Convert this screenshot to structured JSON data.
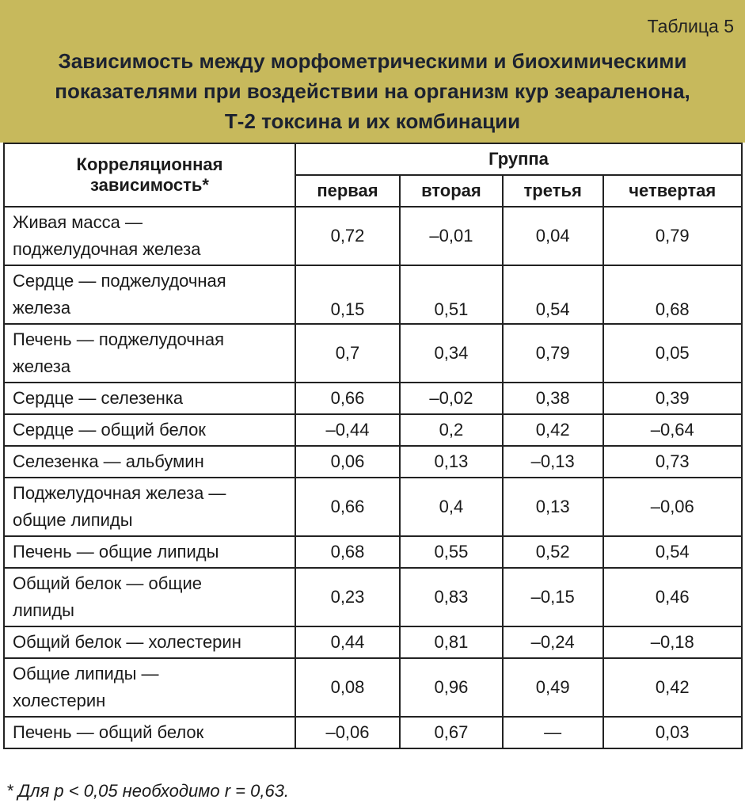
{
  "header": {
    "table_number": "Таблица 5",
    "title_lines": [
      "Зависимость между морфометрическими и биохимическими",
      "показателями при воздействии на организм кур зеараленона,",
      "Т-2 токсина и их комбинации"
    ]
  },
  "table": {
    "first_header_lines": [
      "Корреляционная",
      "зависимость*"
    ],
    "group_header": "Группа",
    "columns": [
      "первая",
      "вторая",
      "третья",
      "четвертая"
    ],
    "rows": [
      {
        "label_lines": [
          "Живая масса —",
          "поджелудочная железа"
        ],
        "cells": [
          "0,72",
          "–0,01",
          "0,04",
          "0,79"
        ]
      },
      {
        "label_lines": [
          "Сердце — поджелудочная",
          "железа"
        ],
        "cells": [
          "0,15",
          "0,51",
          "0,54",
          "0,68"
        ]
      },
      {
        "label_lines": [
          "Печень — поджелудочная",
          "железа"
        ],
        "cells": [
          "0,7",
          "0,34",
          "0,79",
          "0,05"
        ]
      },
      {
        "label_lines": [
          "Сердце — селезенка"
        ],
        "cells": [
          "0,66",
          "–0,02",
          "0,38",
          "0,39"
        ]
      },
      {
        "label_lines": [
          "Сердце — общий белок"
        ],
        "cells": [
          "–0,44",
          "0,2",
          "0,42",
          "–0,64"
        ]
      },
      {
        "label_lines": [
          "Селезенка — альбумин"
        ],
        "cells": [
          "0,06",
          "0,13",
          "–0,13",
          "0,73"
        ]
      },
      {
        "label_lines": [
          "Поджелудочная  железа —",
          "общие липиды"
        ],
        "cells": [
          "0,66",
          "0,4",
          "0,13",
          "–0,06"
        ]
      },
      {
        "label_lines": [
          "Печень — общие липиды"
        ],
        "cells": [
          "0,68",
          "0,55",
          "0,52",
          "0,54"
        ]
      },
      {
        "label_lines": [
          "Общий белок — общие",
          "липиды"
        ],
        "cells": [
          "0,23",
          "0,83",
          "–0,15",
          "0,46"
        ]
      },
      {
        "label_lines": [
          "Общий белок — холестерин"
        ],
        "cells": [
          "0,44",
          "0,81",
          "–0,24",
          "–0,18"
        ]
      },
      {
        "label_lines": [
          "Общие липиды —",
          "холестерин"
        ],
        "cells": [
          "0,08",
          "0,96",
          "0,49",
          "0,42"
        ]
      },
      {
        "label_lines": [
          "Печень — общий белок"
        ],
        "cells": [
          "–0,06",
          "0,67",
          "—",
          "0,03"
        ]
      }
    ]
  },
  "footnote": "* Для p < 0,05 необходимо  r = 0,63."
}
